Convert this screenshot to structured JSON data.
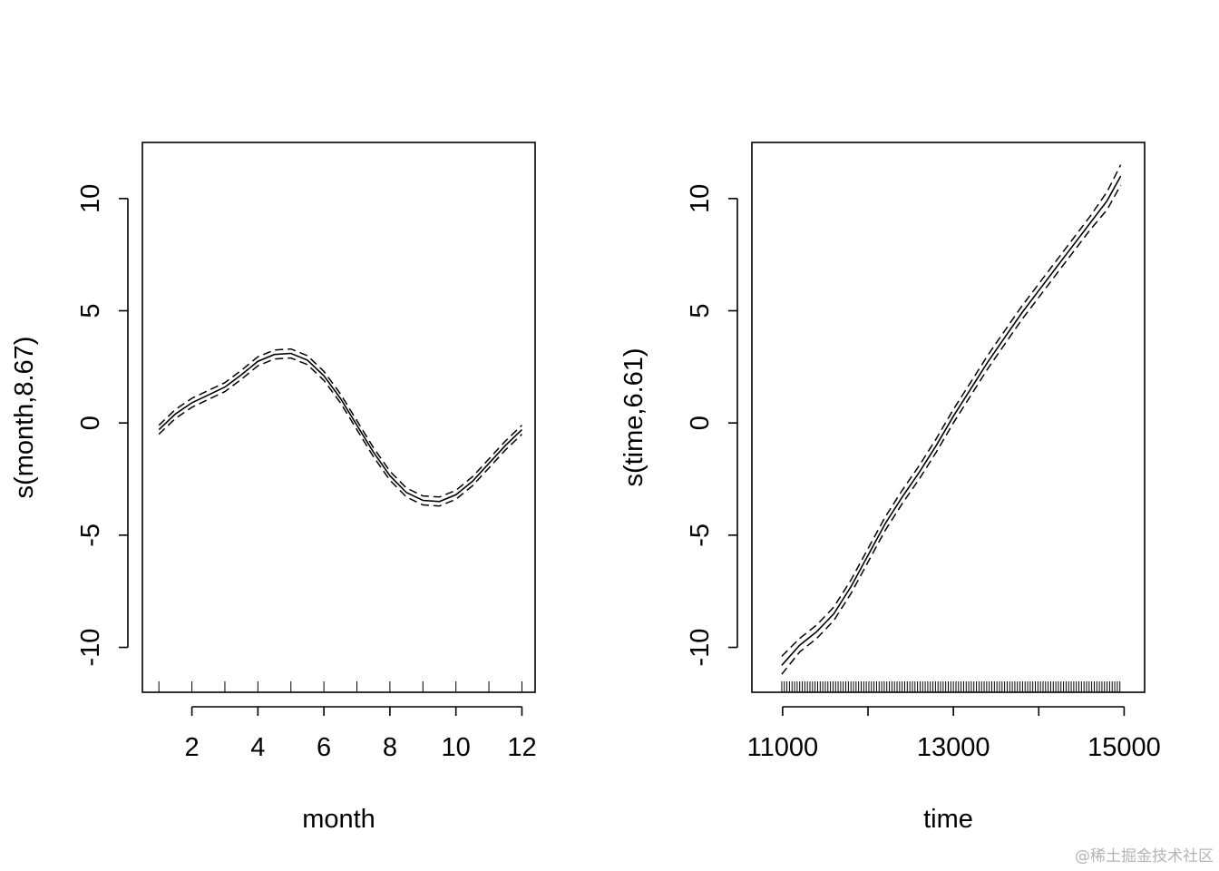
{
  "chart_data": [
    {
      "type": "line",
      "xlabel": "month",
      "ylabel": "s(month,8.67)",
      "xlim": [
        0.5,
        12.4
      ],
      "ylim": [
        -12,
        12.5
      ],
      "xticks": [
        2,
        4,
        6,
        8,
        10,
        12
      ],
      "xtick_labels": [
        "2",
        "4",
        "6",
        "8",
        "10",
        "12"
      ],
      "yticks": [
        -10,
        -5,
        0,
        5,
        10
      ],
      "ytick_labels": [
        "-10",
        "-5",
        "0",
        "5",
        "10"
      ],
      "grid": false,
      "rug": [
        1,
        2,
        3,
        4,
        5,
        6,
        7,
        8,
        9,
        10,
        11,
        12
      ],
      "x": [
        1,
        1.5,
        2,
        2.5,
        3,
        3.5,
        4,
        4.5,
        5,
        5.5,
        6,
        6.5,
        7,
        7.5,
        8,
        8.5,
        9,
        9.5,
        10,
        10.5,
        11,
        11.5,
        12
      ],
      "series": [
        {
          "role": "fit",
          "values": [
            -0.3,
            0.4,
            0.9,
            1.25,
            1.6,
            2.15,
            2.75,
            3.05,
            3.1,
            2.8,
            2.1,
            1.1,
            -0.1,
            -1.3,
            -2.35,
            -3.1,
            -3.45,
            -3.5,
            -3.2,
            -2.6,
            -1.8,
            -1.0,
            -0.3
          ]
        },
        {
          "role": "upper",
          "values": [
            -0.1,
            0.6,
            1.1,
            1.45,
            1.8,
            2.35,
            2.95,
            3.25,
            3.3,
            3.0,
            2.3,
            1.3,
            0.1,
            -1.1,
            -2.15,
            -2.9,
            -3.25,
            -3.3,
            -3.0,
            -2.4,
            -1.6,
            -0.8,
            -0.1
          ]
        },
        {
          "role": "lower",
          "values": [
            -0.5,
            0.2,
            0.7,
            1.05,
            1.4,
            1.95,
            2.55,
            2.85,
            2.9,
            2.6,
            1.9,
            0.9,
            -0.3,
            -1.5,
            -2.55,
            -3.3,
            -3.65,
            -3.7,
            -3.4,
            -2.8,
            -2.0,
            -1.2,
            -0.5
          ]
        }
      ]
    },
    {
      "type": "line",
      "xlabel": "time",
      "ylabel": "s(time,6.61)",
      "xlim": [
        10640,
        15240
      ],
      "ylim": [
        -12,
        12.5
      ],
      "xticks": [
        11000,
        12000,
        13000,
        14000,
        15000
      ],
      "xtick_labels": [
        "11000",
        "",
        "13000",
        "",
        "15000"
      ],
      "yticks": [
        -10,
        -5,
        0,
        5,
        10
      ],
      "ytick_labels": [
        "-10",
        "-5",
        "0",
        "5",
        "10"
      ],
      "grid": false,
      "rug_range": [
        10990,
        14960
      ],
      "rug_step": 30,
      "x": [
        10990,
        11200,
        11400,
        11600,
        11800,
        12000,
        12200,
        12400,
        12600,
        12800,
        13000,
        13200,
        13400,
        13600,
        13800,
        14000,
        14200,
        14400,
        14600,
        14800,
        14960
      ],
      "series": [
        {
          "role": "fit",
          "values": [
            -10.8,
            -9.9,
            -9.3,
            -8.5,
            -7.3,
            -5.9,
            -4.5,
            -3.3,
            -2.2,
            -1.0,
            0.3,
            1.5,
            2.7,
            3.8,
            4.9,
            5.9,
            6.9,
            7.9,
            8.9,
            9.9,
            11.0
          ]
        },
        {
          "role": "upper",
          "values": [
            -10.4,
            -9.6,
            -9.0,
            -8.2,
            -7.0,
            -5.6,
            -4.2,
            -3.0,
            -1.9,
            -0.7,
            0.6,
            1.8,
            3.0,
            4.1,
            5.2,
            6.2,
            7.2,
            8.2,
            9.2,
            10.3,
            11.5
          ]
        },
        {
          "role": "lower",
          "values": [
            -11.2,
            -10.2,
            -9.6,
            -8.8,
            -7.6,
            -6.2,
            -4.8,
            -3.6,
            -2.5,
            -1.3,
            0.0,
            1.2,
            2.4,
            3.5,
            4.6,
            5.6,
            6.6,
            7.6,
            8.6,
            9.5,
            10.6
          ]
        }
      ]
    }
  ],
  "watermark": "@稀土掘金技术社区"
}
